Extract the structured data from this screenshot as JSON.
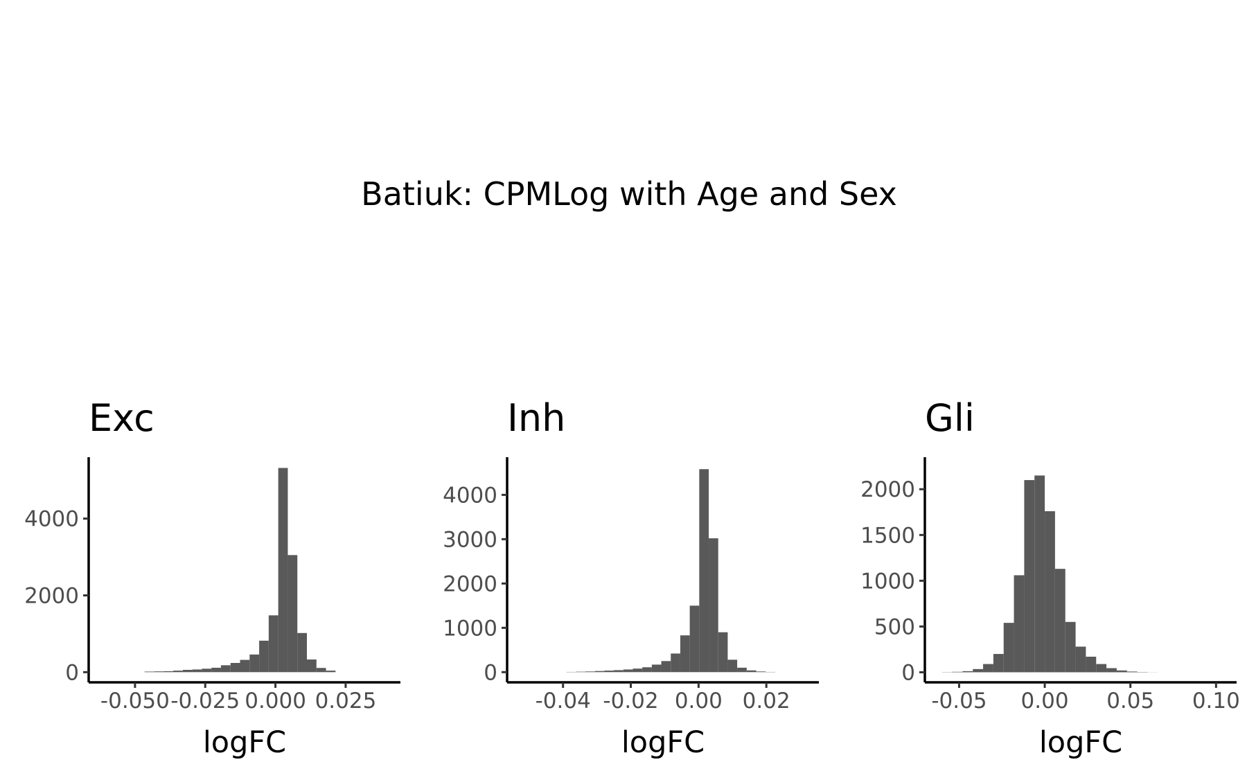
{
  "title": "Batiuk: CPMLog with Age and Sex",
  "colors": {
    "bar": "#595959",
    "axis": "#000000",
    "tick_text": "#4d4d4d"
  },
  "chart_data": [
    {
      "type": "bar",
      "title": "Exc",
      "xlabel": "logFC",
      "ylabel": "",
      "xlim": [
        -0.0665,
        0.0445
      ],
      "ylim": [
        -265,
        5600
      ],
      "xticks": [
        -0.05,
        -0.025,
        0.0,
        0.025
      ],
      "xtick_labels": [
        "-0.050",
        "-0.025",
        "0.000",
        "0.025"
      ],
      "yticks": [
        0,
        2000,
        4000
      ],
      "ytick_labels": [
        "0",
        "2000",
        "4000"
      ],
      "bin_edges": [
        -0.0466,
        -0.0432,
        -0.0398,
        -0.0364,
        -0.033,
        -0.0296,
        -0.0262,
        -0.0228,
        -0.0194,
        -0.016,
        -0.0126,
        -0.0092,
        -0.0058,
        -0.0024,
        0.001,
        0.0044,
        0.0078,
        0.0112,
        0.0146,
        0.018,
        0.0214
      ],
      "values": [
        15,
        20,
        25,
        40,
        60,
        70,
        90,
        115,
        180,
        240,
        320,
        460,
        820,
        1480,
        5320,
        3050,
        1020,
        330,
        110,
        40,
        15
      ]
    },
    {
      "type": "bar",
      "title": "Inh",
      "xlabel": "logFC",
      "ylabel": "",
      "xlim": [
        -0.0565,
        0.0355
      ],
      "ylim": [
        -230,
        4850
      ],
      "xticks": [
        -0.04,
        -0.02,
        0.0,
        0.02
      ],
      "xtick_labels": [
        "-0.04",
        "-0.02",
        "0.00",
        "0.02"
      ],
      "yticks": [
        0,
        1000,
        2000,
        3000,
        4000
      ],
      "ytick_labels": [
        "0",
        "1000",
        "2000",
        "3000",
        "4000"
      ],
      "bin_edges": [
        -0.039,
        -0.0362,
        -0.0334,
        -0.0306,
        -0.0278,
        -0.025,
        -0.0222,
        -0.0194,
        -0.0166,
        -0.0138,
        -0.011,
        -0.0082,
        -0.0054,
        -0.0026,
        0.0002,
        0.003,
        0.0058,
        0.0086,
        0.0114,
        0.0142,
        0.017,
        0.0198,
        0.0226
      ],
      "values": [
        5,
        10,
        15,
        25,
        35,
        45,
        60,
        80,
        110,
        170,
        250,
        420,
        830,
        1500,
        4580,
        3020,
        900,
        280,
        100,
        40,
        15,
        5
      ]
    },
    {
      "type": "bar",
      "title": "Gli",
      "xlabel": "logFC",
      "ylabel": "",
      "xlim": [
        -0.07,
        0.112
      ],
      "ylim": [
        -110,
        2350
      ],
      "xticks": [
        -0.05,
        0.0,
        0.05,
        0.1
      ],
      "xtick_labels": [
        "-0.05",
        "0.00",
        "0.05",
        "0.10"
      ],
      "yticks": [
        0,
        500,
        1000,
        1500,
        2000
      ],
      "ytick_labels": [
        "0",
        "500",
        "1000",
        "1500",
        "2000"
      ],
      "bin_edges": [
        -0.06,
        -0.054,
        -0.048,
        -0.042,
        -0.036,
        -0.03,
        -0.024,
        -0.018,
        -0.012,
        -0.006,
        0.0,
        0.006,
        0.012,
        0.018,
        0.024,
        0.03,
        0.036,
        0.042,
        0.048,
        0.054,
        0.06,
        0.066
      ],
      "values": [
        2,
        5,
        12,
        35,
        90,
        200,
        540,
        1060,
        2100,
        2150,
        1760,
        1130,
        550,
        280,
        170,
        90,
        45,
        20,
        8,
        3,
        1
      ]
    }
  ]
}
